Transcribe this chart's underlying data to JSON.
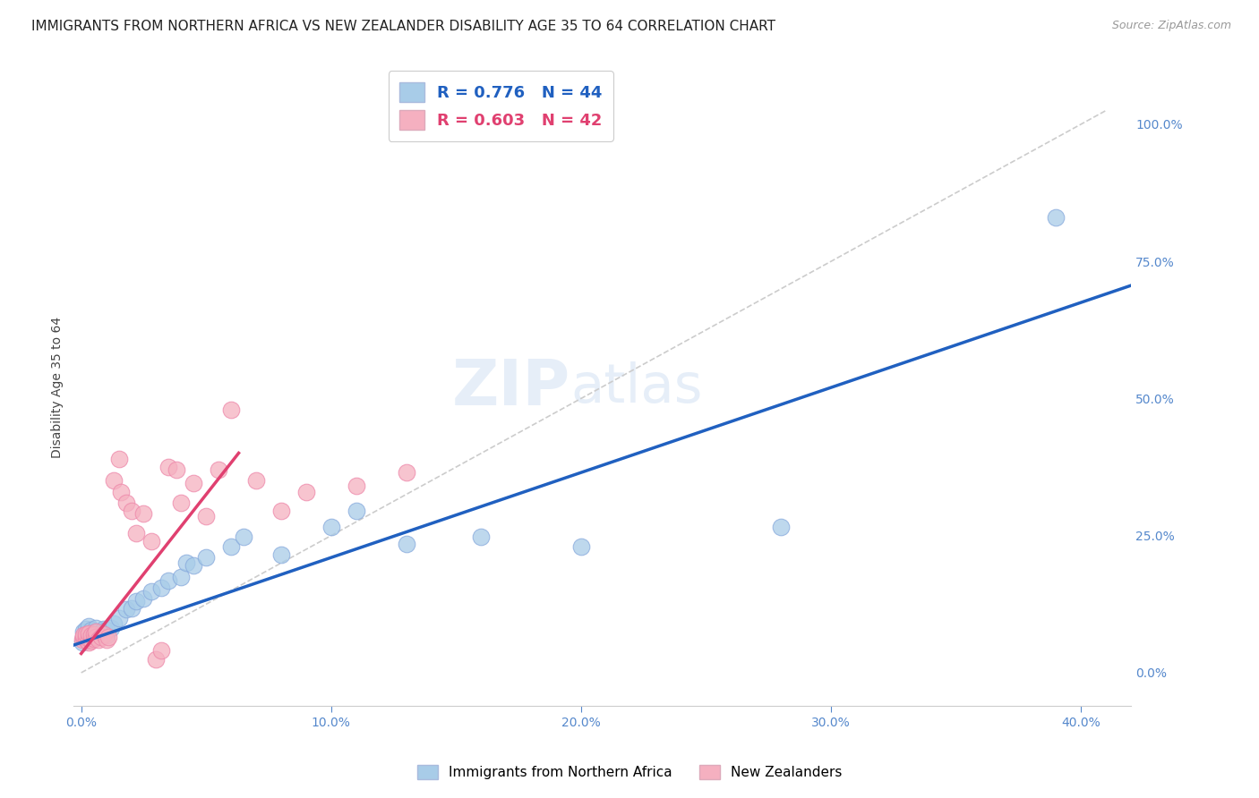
{
  "title": "IMMIGRANTS FROM NORTHERN AFRICA VS NEW ZEALANDER DISABILITY AGE 35 TO 64 CORRELATION CHART",
  "source": "Source: ZipAtlas.com",
  "xlabel_ticks": [
    "0.0%",
    "10.0%",
    "20.0%",
    "30.0%",
    "40.0%"
  ],
  "xlabel_tick_vals": [
    0.0,
    0.1,
    0.2,
    0.3,
    0.4
  ],
  "ylabel": "Disability Age 35 to 64",
  "ylabel_ticks": [
    "0.0%",
    "25.0%",
    "50.0%",
    "75.0%",
    "100.0%"
  ],
  "ylabel_tick_vals": [
    0.0,
    0.25,
    0.5,
    0.75,
    1.0
  ],
  "xlim": [
    -0.003,
    0.42
  ],
  "ylim": [
    -0.06,
    1.1
  ],
  "legend_blue_label": "Immigrants from Northern Africa",
  "legend_pink_label": "New Zealanders",
  "blue_R": 0.776,
  "blue_N": 44,
  "pink_R": 0.603,
  "pink_N": 42,
  "blue_color": "#a8cce8",
  "pink_color": "#f5b0c0",
  "blue_line_color": "#2060c0",
  "pink_line_color": "#e04070",
  "diag_line_color": "#cccccc",
  "watermark_zip": "ZIP",
  "watermark_atlas": "atlas",
  "grid_color": "#e0e0e0",
  "background_color": "#ffffff",
  "title_fontsize": 11,
  "axis_label_fontsize": 10,
  "tick_fontsize": 10,
  "tick_color": "#5588cc",
  "watermark_fontsize_zip": 52,
  "watermark_fontsize_atlas": 42,
  "blue_points_x": [
    0.0005,
    0.001,
    0.001,
    0.002,
    0.002,
    0.002,
    0.003,
    0.003,
    0.003,
    0.004,
    0.004,
    0.005,
    0.005,
    0.006,
    0.006,
    0.007,
    0.008,
    0.009,
    0.01,
    0.01,
    0.012,
    0.013,
    0.015,
    0.018,
    0.02,
    0.022,
    0.025,
    0.028,
    0.032,
    0.035,
    0.04,
    0.042,
    0.045,
    0.05,
    0.06,
    0.065,
    0.08,
    0.1,
    0.11,
    0.13,
    0.16,
    0.2,
    0.28,
    0.39
  ],
  "blue_points_y": [
    0.055,
    0.065,
    0.075,
    0.062,
    0.072,
    0.08,
    0.06,
    0.07,
    0.085,
    0.068,
    0.078,
    0.065,
    0.075,
    0.07,
    0.082,
    0.068,
    0.073,
    0.08,
    0.068,
    0.078,
    0.082,
    0.09,
    0.1,
    0.115,
    0.118,
    0.13,
    0.135,
    0.148,
    0.155,
    0.168,
    0.175,
    0.2,
    0.195,
    0.21,
    0.23,
    0.248,
    0.215,
    0.265,
    0.295,
    0.235,
    0.248,
    0.23,
    0.265,
    0.83
  ],
  "pink_points_x": [
    0.0005,
    0.001,
    0.001,
    0.002,
    0.002,
    0.002,
    0.003,
    0.003,
    0.003,
    0.004,
    0.004,
    0.005,
    0.005,
    0.006,
    0.006,
    0.007,
    0.008,
    0.009,
    0.01,
    0.011,
    0.013,
    0.015,
    0.016,
    0.018,
    0.02,
    0.022,
    0.025,
    0.028,
    0.03,
    0.032,
    0.035,
    0.038,
    0.04,
    0.045,
    0.05,
    0.055,
    0.06,
    0.07,
    0.08,
    0.09,
    0.11,
    0.13
  ],
  "pink_points_y": [
    0.06,
    0.065,
    0.068,
    0.06,
    0.065,
    0.07,
    0.055,
    0.062,
    0.072,
    0.058,
    0.068,
    0.062,
    0.07,
    0.065,
    0.075,
    0.06,
    0.065,
    0.07,
    0.06,
    0.065,
    0.35,
    0.39,
    0.33,
    0.31,
    0.295,
    0.255,
    0.29,
    0.24,
    0.025,
    0.04,
    0.375,
    0.37,
    0.31,
    0.345,
    0.285,
    0.37,
    0.48,
    0.35,
    0.295,
    0.33,
    0.34,
    0.365
  ],
  "blue_line_x": [
    -0.003,
    0.42
  ],
  "blue_line_slope": 1.55,
  "blue_line_intercept": 0.055,
  "pink_line_x_start": 0.0,
  "pink_line_x_end": 0.063,
  "pink_line_slope": 5.8,
  "pink_line_intercept": 0.035
}
